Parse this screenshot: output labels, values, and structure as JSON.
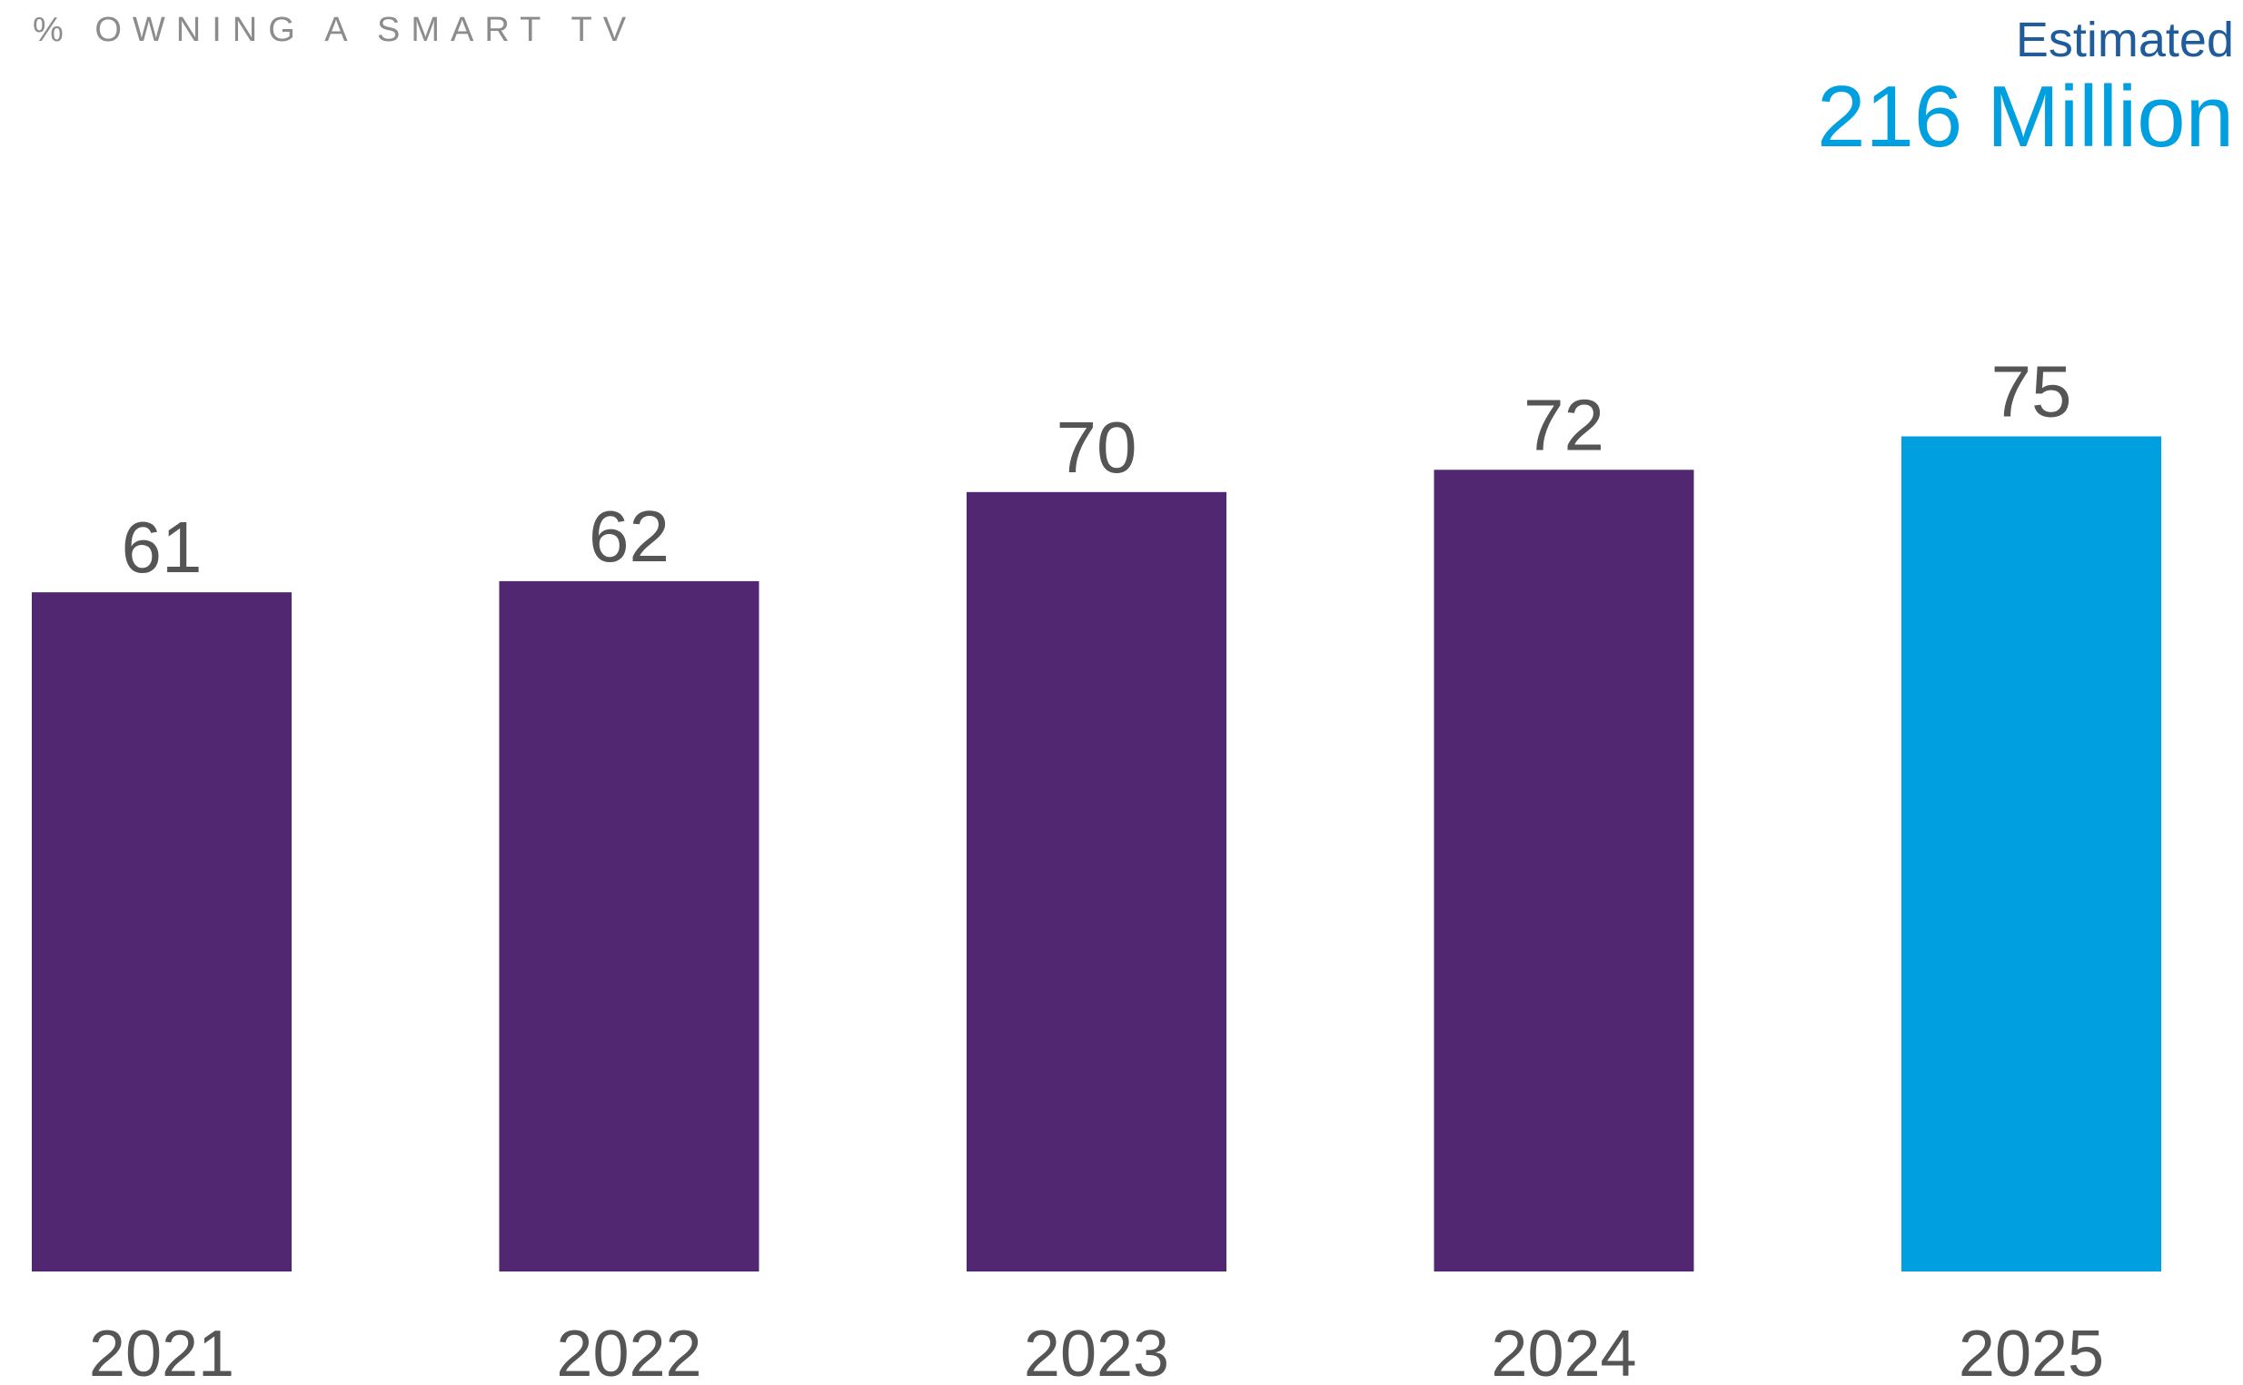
{
  "chart_data": {
    "type": "bar",
    "title": "% OWNING A SMART TV",
    "annotation": {
      "label": "Estimated",
      "value": "216 Million",
      "label_color": "#1f5c99",
      "value_color": "#009fe0"
    },
    "categories": [
      "2021",
      "2022",
      "2023",
      "2024",
      "2025"
    ],
    "values": [
      61,
      62,
      70,
      72,
      75
    ],
    "value_labels": [
      "61",
      "62",
      "70",
      "72",
      "75"
    ],
    "colors": [
      "#522772",
      "#522772",
      "#522772",
      "#522772",
      "#009fe0"
    ],
    "ylim": [
      0,
      100
    ],
    "grid": false,
    "xlabel": "",
    "ylabel": ""
  }
}
